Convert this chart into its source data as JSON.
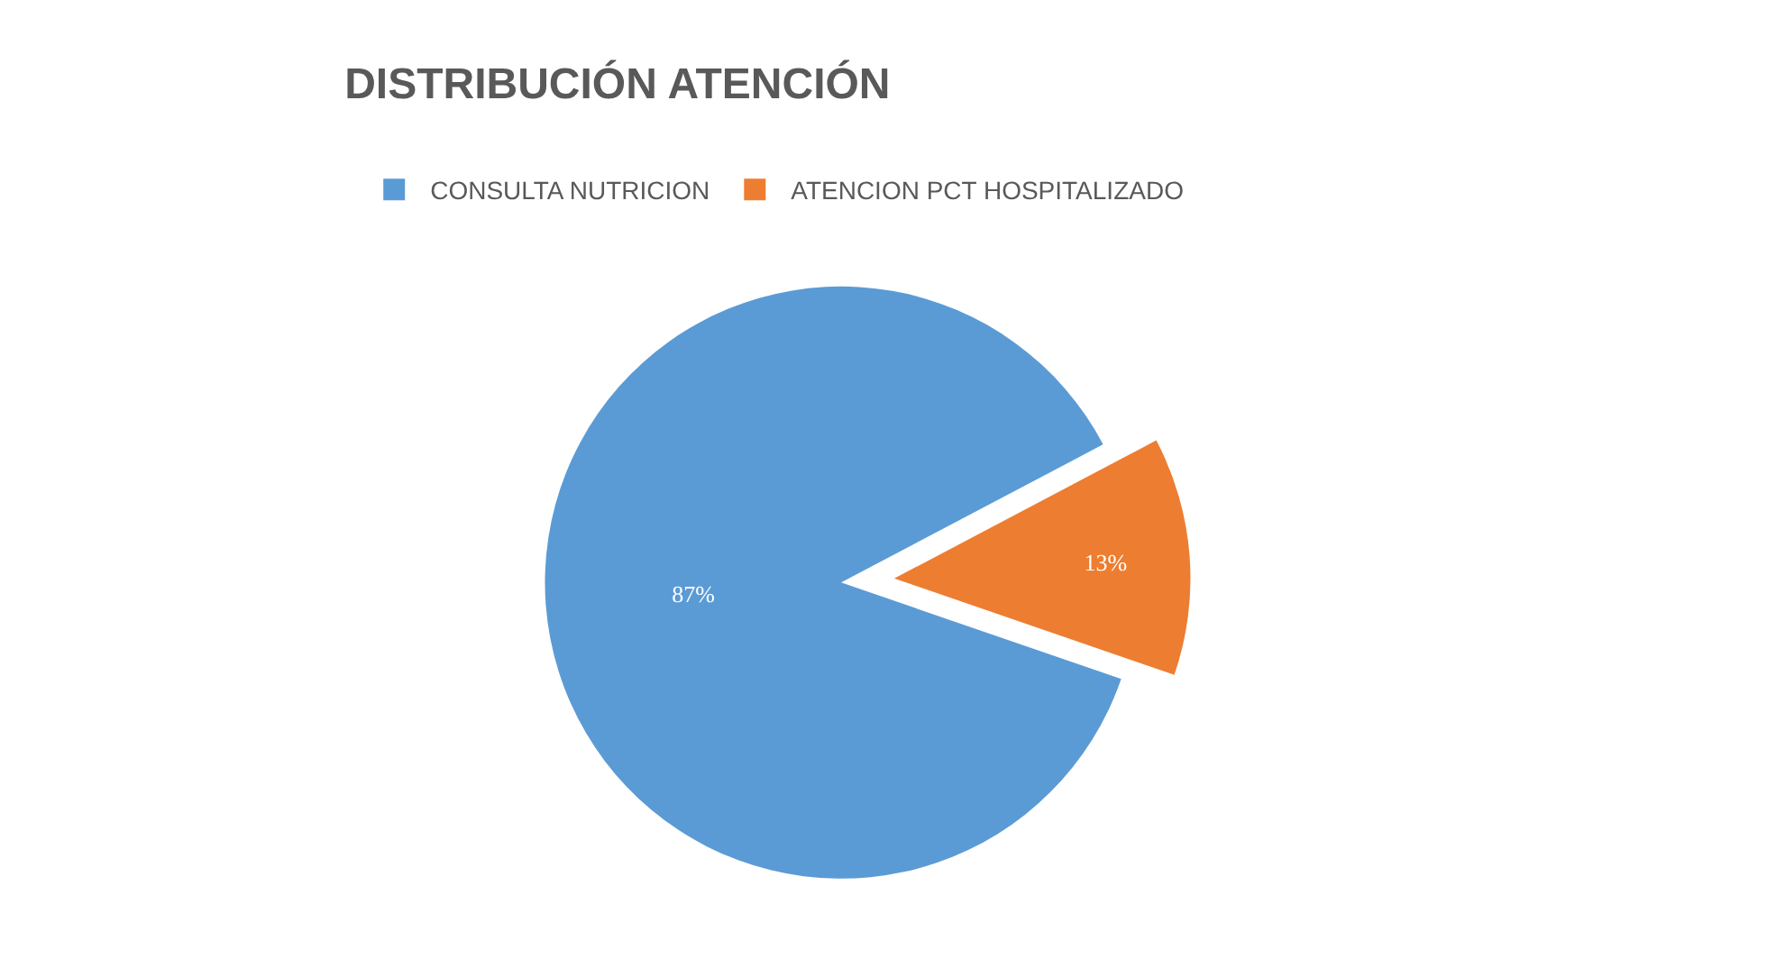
{
  "chart_data": {
    "type": "pie",
    "title": "DISTRIBUCIÓN ATENCIÓN",
    "categories": [
      "CONSULTA NUTRICION",
      "ATENCION PCT HOSPITALIZADO"
    ],
    "values": [
      87,
      13
    ],
    "colors": [
      "#5b9bd5",
      "#ed7d31"
    ],
    "value_labels": [
      "87%",
      "13%"
    ],
    "legend": "top left"
  }
}
